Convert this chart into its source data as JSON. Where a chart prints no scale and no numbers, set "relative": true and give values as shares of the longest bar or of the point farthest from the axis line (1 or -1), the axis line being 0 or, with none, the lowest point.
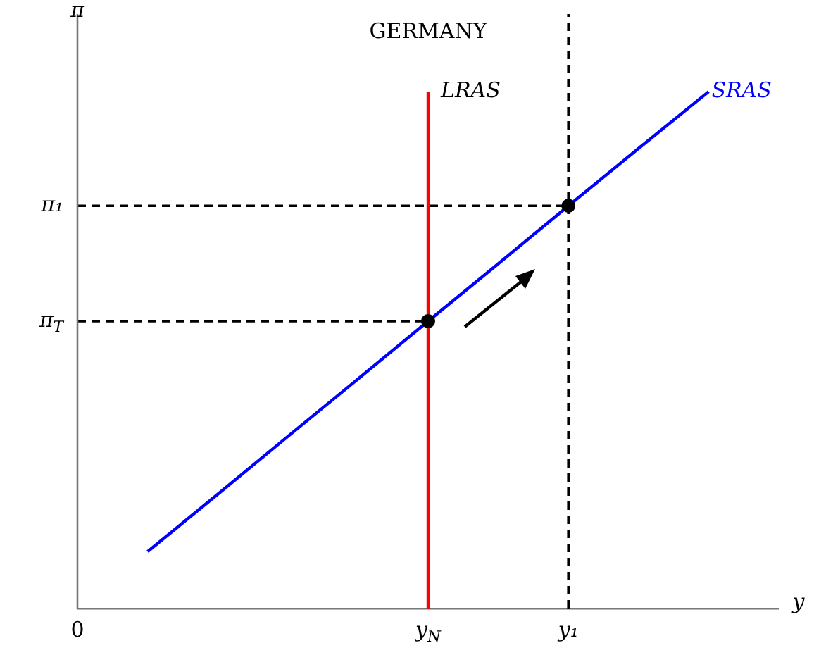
{
  "chart_data": {
    "type": "line",
    "title": "GERMANY",
    "xlabel": "y",
    "ylabel": "π",
    "relative": true,
    "legend": false,
    "categories": [
      "0",
      null,
      null,
      null,
      null,
      "y$_{N}$",
      null,
      "y₁",
      null,
      null,
      null
    ],
    "series": [
      {
        "name": "SRAS",
        "color": "#0000ff",
        "values": [
          null,
          0.11,
          0.221,
          0.333,
          0.444,
          0.556,
          0.667,
          0.779,
          0.89,
          1,
          null
        ]
      },
      {
        "type": "scatter",
        "marker": "circle",
        "color": "#000000",
        "values": [
          null,
          null,
          null,
          null,
          null,
          0.556,
          null,
          0.779,
          null,
          null,
          null
        ]
      }
    ],
    "ref_lines": [
      {
        "axis": "x",
        "value": "y$_{N}$",
        "label": "LRAS",
        "color": "#ff0000",
        "line_style": "solid"
      },
      {
        "axis": "x",
        "value": "y₁",
        "color": "#000000",
        "line_style": "dashed"
      },
      {
        "axis": "y",
        "value": 0.779,
        "label": "π₁",
        "color": "#000000",
        "line_style": "dashed"
      },
      {
        "axis": "y",
        "value": 0.556,
        "label": "π$_{T}$",
        "color": "#000000",
        "line_style": "dashed"
      }
    ]
  }
}
